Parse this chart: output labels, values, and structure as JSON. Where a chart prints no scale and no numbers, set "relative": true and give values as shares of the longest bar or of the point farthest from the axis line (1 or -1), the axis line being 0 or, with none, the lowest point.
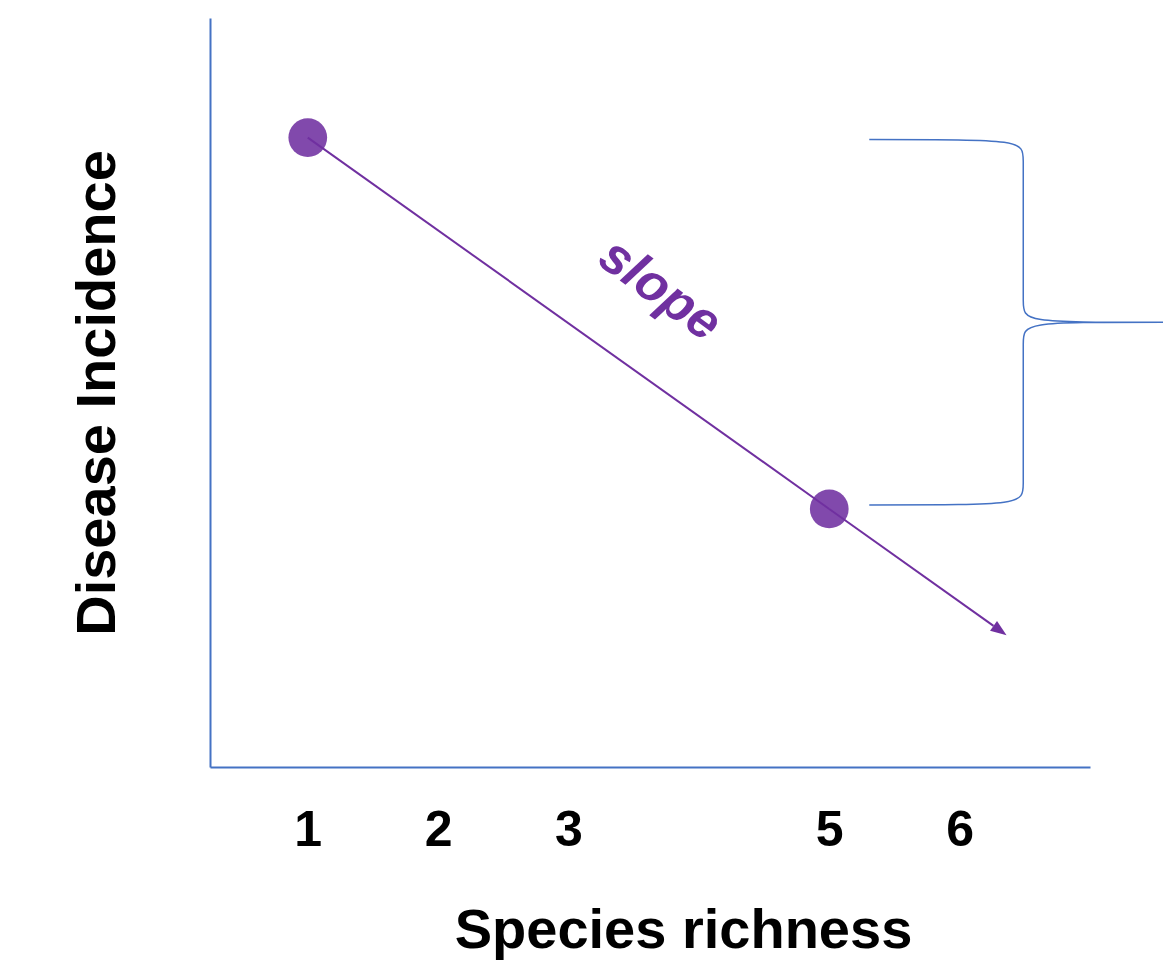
{
  "chart_data": {
    "type": "line",
    "relative": true,
    "xlabel": "Species richness",
    "ylabel": "Disease Incidence",
    "xlim": [
      0.25,
      7
    ],
    "xticks": [
      1,
      2,
      3,
      5,
      6
    ],
    "marker": "circle",
    "line_style": "solid",
    "annotations": [
      "slope"
    ],
    "series": [
      {
        "x": [
          1,
          5
        ],
        "values": [
          1,
          0.41
        ],
        "color": "#7030a0"
      }
    ]
  }
}
